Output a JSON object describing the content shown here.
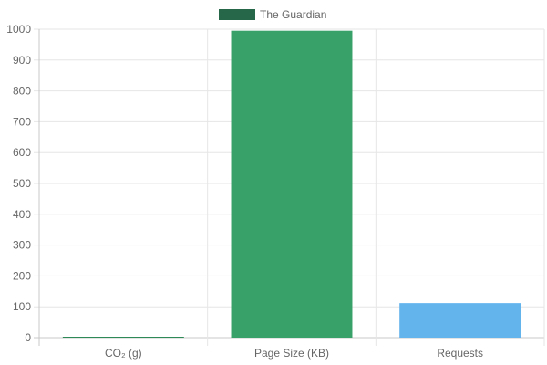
{
  "chart_data": {
    "type": "bar",
    "categories": [
      "CO₂ (g)",
      "Page Size (KB)",
      "Requests"
    ],
    "series": [
      {
        "name": "The Guardian",
        "values": [
          1.2,
          995,
          112
        ]
      }
    ],
    "bar_colors": [
      "#2e8b57",
      "#38a169",
      "#63b3ed"
    ],
    "legend_color": "#276749",
    "ylim": [
      0,
      1000
    ],
    "yticks": [
      0,
      100,
      200,
      300,
      400,
      500,
      600,
      700,
      800,
      900,
      1000
    ],
    "grid": true,
    "legend_position": "top-center",
    "title": "",
    "xlabel": "",
    "ylabel": ""
  }
}
